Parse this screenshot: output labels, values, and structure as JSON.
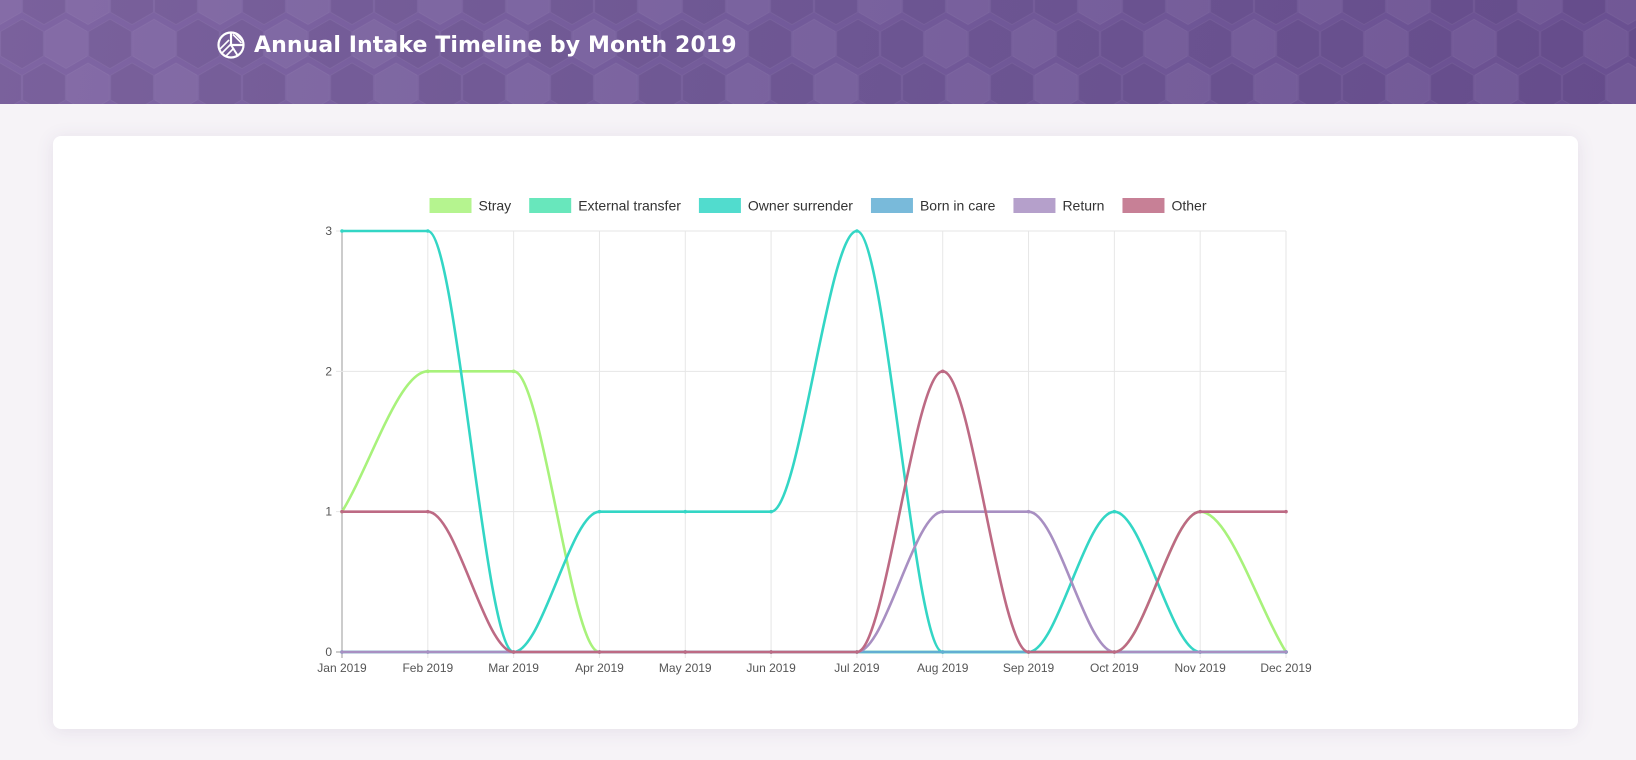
{
  "header": {
    "title": "Annual Intake Timeline by Month 2019",
    "background": "#755d9c",
    "logo_icon": "chart-pie-icon"
  },
  "chart_data": {
    "type": "line",
    "categories": [
      "Jan 2019",
      "Feb 2019",
      "Mar 2019",
      "Apr 2019",
      "May 2019",
      "Jun 2019",
      "Jul 2019",
      "Aug 2019",
      "Sep 2019",
      "Oct 2019",
      "Nov 2019",
      "Dec 2019"
    ],
    "ylim": [
      0,
      3
    ],
    "yticks": [
      "0",
      "1",
      "2",
      "3"
    ],
    "grid": true,
    "legend_position": "top",
    "series": [
      {
        "name": "Stray",
        "color": "#a8f27b",
        "values": [
          1,
          2,
          2,
          0,
          0,
          0,
          0,
          0,
          0,
          0,
          1,
          0
        ]
      },
      {
        "name": "External transfer",
        "color": "#4ee3b0",
        "values": [
          0,
          0,
          0,
          0,
          0,
          0,
          0,
          0,
          0,
          0,
          0,
          0
        ]
      },
      {
        "name": "Owner surrender",
        "color": "#33d6c5",
        "values": [
          3,
          3,
          0,
          1,
          1,
          1,
          3,
          0,
          0,
          1,
          0,
          0
        ]
      },
      {
        "name": "Born in care",
        "color": "#62aed3",
        "values": [
          0,
          0,
          0,
          0,
          0,
          0,
          0,
          0,
          0,
          0,
          0,
          0
        ]
      },
      {
        "name": "Return",
        "color": "#a88fc2",
        "values": [
          0,
          0,
          0,
          0,
          0,
          0,
          0,
          1,
          1,
          0,
          0,
          0
        ]
      },
      {
        "name": "Other",
        "color": "#bd6a84",
        "values": [
          1,
          1,
          0,
          0,
          0,
          0,
          0,
          2,
          0,
          0,
          1,
          1
        ]
      }
    ]
  }
}
